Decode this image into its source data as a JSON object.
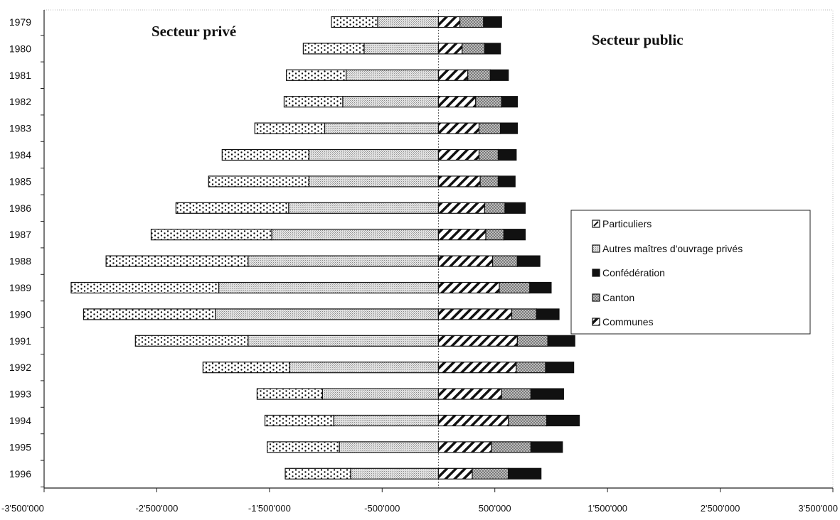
{
  "chart_data": {
    "type": "bar",
    "orientation": "horizontal-diverging-stacked",
    "categories": [
      "1979",
      "1980",
      "1981",
      "1982",
      "1983",
      "1984",
      "1985",
      "1986",
      "1987",
      "1988",
      "1989",
      "1990",
      "1991",
      "1992",
      "1993",
      "1994",
      "1995",
      "1996"
    ],
    "annotations": {
      "left": "Secteur privé",
      "right": "Secteur public"
    },
    "xlim": [
      -3500000,
      3500000
    ],
    "xticks": [
      -3500000,
      -2500000,
      -1500000,
      -500000,
      500000,
      1500000,
      2500000,
      3500000
    ],
    "xtick_labels": [
      "-3'500'000",
      "-2'500'000",
      "-1'500'000",
      "-500'000",
      "500'000",
      "1'500'000",
      "2'500'000",
      "3'500'000"
    ],
    "grid": false,
    "legend_position": "right",
    "legend_order": [
      "Particuliers",
      "Autres maîtres d'ouvrage privés",
      "Confédération",
      "Canton",
      "Communes"
    ],
    "private_series": [
      {
        "name": "Autres maîtres d'ouvrage privés",
        "pattern": "dotted-grey",
        "values": [
          -540000,
          -660000,
          -820000,
          -850000,
          -1010000,
          -1150000,
          -1150000,
          -1330000,
          -1480000,
          -1690000,
          -1950000,
          -1980000,
          -1690000,
          -1320000,
          -1030000,
          -930000,
          -880000,
          -780000
        ]
      },
      {
        "name": "Particuliers",
        "pattern": "dots",
        "values": [
          -410000,
          -540000,
          -530000,
          -520000,
          -620000,
          -770000,
          -890000,
          -1000000,
          -1070000,
          -1260000,
          -1310000,
          -1170000,
          -1000000,
          -770000,
          -580000,
          -610000,
          -640000,
          -580000
        ]
      }
    ],
    "public_series": [
      {
        "name": "Communes",
        "pattern": "diagonal-hatch",
        "values": [
          190000,
          210000,
          260000,
          330000,
          360000,
          360000,
          370000,
          410000,
          420000,
          480000,
          540000,
          650000,
          700000,
          690000,
          560000,
          620000,
          470000,
          300000
        ]
      },
      {
        "name": "Canton",
        "pattern": "grey-check",
        "values": [
          210000,
          200000,
          200000,
          230000,
          190000,
          170000,
          160000,
          180000,
          160000,
          220000,
          270000,
          220000,
          270000,
          260000,
          260000,
          340000,
          350000,
          320000
        ]
      },
      {
        "name": "Confédération",
        "pattern": "solid-black",
        "values": [
          160000,
          140000,
          160000,
          140000,
          150000,
          160000,
          150000,
          180000,
          190000,
          200000,
          190000,
          200000,
          240000,
          250000,
          290000,
          290000,
          280000,
          290000
        ]
      }
    ]
  }
}
